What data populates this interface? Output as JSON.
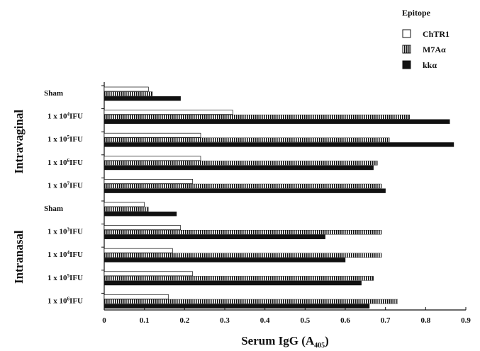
{
  "chart_data": {
    "type": "bar",
    "orientation": "horizontal",
    "title": "",
    "xlabel": "Serum IgG (A",
    "xlabel_subscript": "405",
    "xlabel_close": ")",
    "xlim": [
      0,
      0.9
    ],
    "x_ticks": [
      "0",
      "0.1",
      "0.2",
      "0.3",
      "0.4",
      "0.5",
      "0.6",
      "0.7",
      "0.8",
      "0.9"
    ],
    "legend": {
      "title": "Epitope",
      "placement": "top-right",
      "items": [
        {
          "name": "ChTR1",
          "swatch": "open"
        },
        {
          "name": "M7Aα",
          "swatch": "vertical-stripe"
        },
        {
          "name": "kkα",
          "swatch": "solid"
        }
      ]
    },
    "groups": [
      {
        "name": "Intravaginal",
        "categories": [
          0,
          1,
          2,
          3,
          4
        ]
      },
      {
        "name": "Intranasal",
        "categories": [
          5,
          6,
          7,
          8,
          9
        ]
      }
    ],
    "categories": [
      {
        "base": "Sham",
        "exp": ""
      },
      {
        "base": "1 x 10",
        "exp": "4",
        "unit": "IFU"
      },
      {
        "base": "1 x 10",
        "exp": "5",
        "unit": "IFU"
      },
      {
        "base": "1 x 10",
        "exp": "6",
        "unit": "IFU"
      },
      {
        "base": "1 x 10",
        "exp": "7",
        "unit": "IFU"
      },
      {
        "base": "Sham",
        "exp": ""
      },
      {
        "base": "1 x 10",
        "exp": "3",
        "unit": "IFU"
      },
      {
        "base": "1 x 10",
        "exp": "4",
        "unit": "IFU"
      },
      {
        "base": "1 x 10",
        "exp": "5",
        "unit": "IFU"
      },
      {
        "base": "1 x 10",
        "exp": "6",
        "unit": "IFU"
      }
    ],
    "series": [
      {
        "name": "ChTR1",
        "values": [
          0.11,
          0.32,
          0.24,
          0.24,
          0.22,
          0.1,
          0.19,
          0.17,
          0.22,
          0.16
        ]
      },
      {
        "name": "M7Aα",
        "values": [
          0.12,
          0.76,
          0.71,
          0.68,
          0.69,
          0.11,
          0.69,
          0.69,
          0.67,
          0.73
        ]
      },
      {
        "name": "kkα",
        "values": [
          0.19,
          0.86,
          0.87,
          0.67,
          0.7,
          0.18,
          0.55,
          0.6,
          0.64,
          0.66
        ]
      }
    ],
    "colors": {
      "ink": "#111111",
      "background": "#ffffff"
    }
  }
}
